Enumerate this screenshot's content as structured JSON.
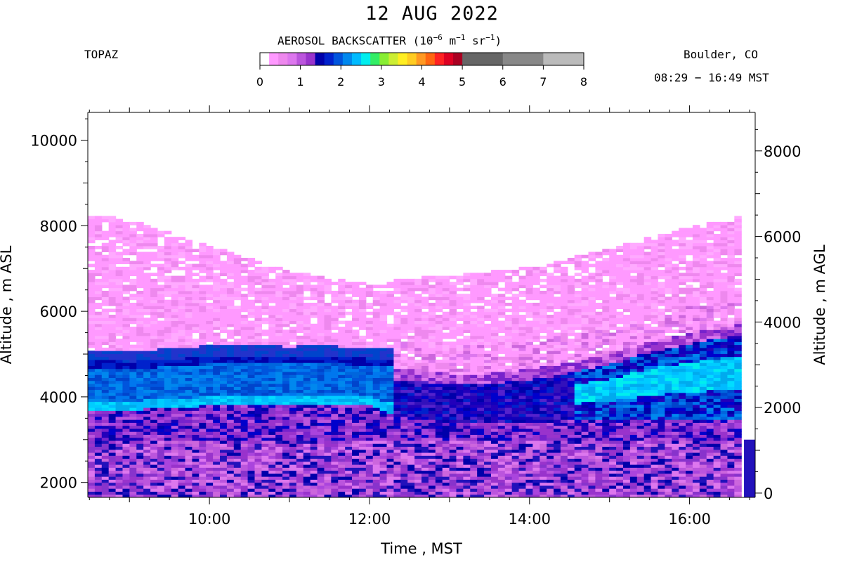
{
  "header": {
    "title": "12 AUG 2022",
    "station": "TOPAZ",
    "colorbar_title_prefix": "AEROSOL BACKSCATTER (10",
    "colorbar_title_exp1": "−6",
    "colorbar_title_mid1": " m",
    "colorbar_title_exp2": "−1",
    "colorbar_title_mid2": " sr",
    "colorbar_title_exp3": "−1",
    "colorbar_title_suffix": ")",
    "location": "Boulder, CO",
    "time_range": "08:29 − 16:49 MST"
  },
  "colorbar": {
    "ticks": [
      "0",
      "1",
      "2",
      "3",
      "4",
      "5",
      "6",
      "7",
      "8"
    ],
    "range": [
      0,
      8
    ],
    "colors": [
      "#ffffff",
      "#ff99ff",
      "#ee88ee",
      "#dd77ee",
      "#bb55dd",
      "#9933cc",
      "#0000aa",
      "#0022cc",
      "#0055dd",
      "#0088ee",
      "#00bbff",
      "#00eeee",
      "#33ee66",
      "#88ee33",
      "#ccee33",
      "#ffee22",
      "#ffcc22",
      "#ff9922",
      "#ff6611",
      "#ff2222",
      "#dd0022",
      "#aa0022",
      "#666666",
      "#888888",
      "#bbbbbb"
    ]
  },
  "chart_data": {
    "type": "heatmap",
    "title": "12 AUG 2022",
    "variable": "AEROSOL BACKSCATTER",
    "xlabel": "Time , MST",
    "ylabel_left": "Altitude , m ASL",
    "ylabel_right": "Altitude , m AGL",
    "x_range_hours": [
      8.48,
      16.82
    ],
    "x_ticks": [
      "10:00",
      "12:00",
      "14:00",
      "16:00"
    ],
    "x_tick_values_hours": [
      10,
      12,
      14,
      16
    ],
    "ylim_left": [
      1650,
      10650
    ],
    "y_ticks_left": [
      2000,
      4000,
      6000,
      8000,
      10000
    ],
    "ylim_right": [
      -100,
      8900
    ],
    "y_ticks_right": [
      0,
      2000,
      4000,
      6000,
      8000
    ],
    "color_range": [
      0,
      8
    ],
    "profiles": [
      {
        "time": "08:35",
        "top": 8180,
        "layer_top": 4850,
        "layer_bottom": 3700
      },
      {
        "time": "09:00",
        "top": 8150,
        "layer_top": 4830,
        "layer_bottom": 3700
      },
      {
        "time": "09:30",
        "top": 7800,
        "layer_top": 4880,
        "layer_bottom": 3750
      },
      {
        "time": "10:00",
        "top": 7500,
        "layer_top": 4950,
        "layer_bottom": 3800
      },
      {
        "time": "10:30",
        "top": 7200,
        "layer_top": 4950,
        "layer_bottom": 3850
      },
      {
        "time": "11:00",
        "top": 6900,
        "layer_top": 4930,
        "layer_bottom": 3850
      },
      {
        "time": "11:30",
        "top": 6750,
        "layer_top": 4950,
        "layer_bottom": 3850
      },
      {
        "time": "12:00",
        "top": 6600,
        "layer_top": 4900,
        "layer_bottom": 3800
      },
      {
        "time": "12:30",
        "top": 6750,
        "layer_top": 4400,
        "layer_bottom": 3500
      },
      {
        "time": "13:00",
        "top": 6800,
        "layer_top": 4300,
        "layer_bottom": 3400
      },
      {
        "time": "13:30",
        "top": 6900,
        "layer_top": 4300,
        "layer_bottom": 3400
      },
      {
        "time": "14:00",
        "top": 7000,
        "layer_top": 4400,
        "layer_bottom": 3400
      },
      {
        "time": "14:30",
        "top": 7200,
        "layer_top": 4550,
        "layer_bottom": 3450
      },
      {
        "time": "15:00",
        "top": 7450,
        "layer_top": 4750,
        "layer_bottom": 3450
      },
      {
        "time": "15:30",
        "top": 7700,
        "layer_top": 5050,
        "layer_bottom": 3500
      },
      {
        "time": "16:00",
        "top": 7950,
        "layer_top": 5250,
        "layer_bottom": 3500
      },
      {
        "time": "16:30",
        "top": 8100,
        "layer_top": 5400,
        "layer_bottom": 3500
      },
      {
        "time": "16:45",
        "top": 8300,
        "layer_top": 5500,
        "layer_bottom": 3500
      }
    ]
  }
}
